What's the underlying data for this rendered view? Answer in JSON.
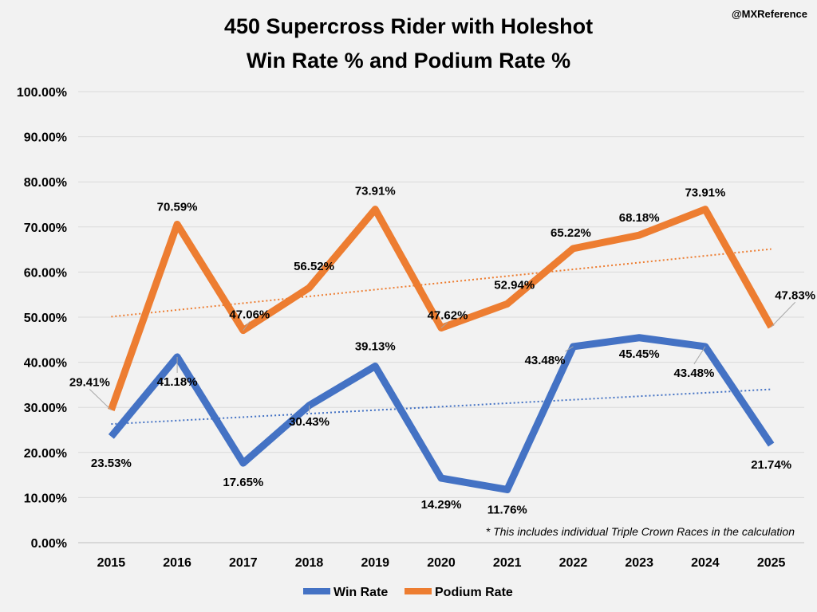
{
  "chart_data": {
    "type": "line",
    "title": [
      "450 Supercross Rider with Holeshot",
      "Win Rate % and Podium Rate %"
    ],
    "handle": "@MXReference",
    "note": "* This includes individual Triple Crown Races in the calculation",
    "categories": [
      "2015",
      "2016",
      "2017",
      "2018",
      "2019",
      "2020",
      "2021",
      "2022",
      "2023",
      "2024",
      "2025"
    ],
    "ylim": [
      0,
      100
    ],
    "yticks": [
      "0.00%",
      "10.00%",
      "20.00%",
      "30.00%",
      "40.00%",
      "50.00%",
      "60.00%",
      "70.00%",
      "80.00%",
      "90.00%",
      "100.00%"
    ],
    "grid": true,
    "legend_position": "bottom",
    "series": [
      {
        "name": "Win Rate",
        "color": "#4472c4",
        "values": [
          23.53,
          41.18,
          17.65,
          30.43,
          39.13,
          14.29,
          11.76,
          43.48,
          45.45,
          43.48,
          21.74
        ],
        "labels": [
          "23.53%",
          "41.18%",
          "17.65%",
          "30.43%",
          "39.13%",
          "14.29%",
          "11.76%",
          "43.48%",
          "45.45%",
          "43.48%",
          "21.74%"
        ],
        "trendline": [
          26.3,
          34.0
        ]
      },
      {
        "name": "Podium Rate",
        "color": "#ed7d31",
        "values": [
          29.41,
          70.59,
          47.06,
          56.52,
          73.91,
          47.62,
          52.94,
          65.22,
          68.18,
          73.91,
          47.83
        ],
        "labels": [
          "29.41%",
          "70.59%",
          "47.06%",
          "56.52%",
          "73.91%",
          "47.62%",
          "52.94%",
          "65.22%",
          "68.18%",
          "73.91%",
          "47.83%"
        ],
        "trendline": [
          50.1,
          65.1
        ]
      }
    ]
  }
}
